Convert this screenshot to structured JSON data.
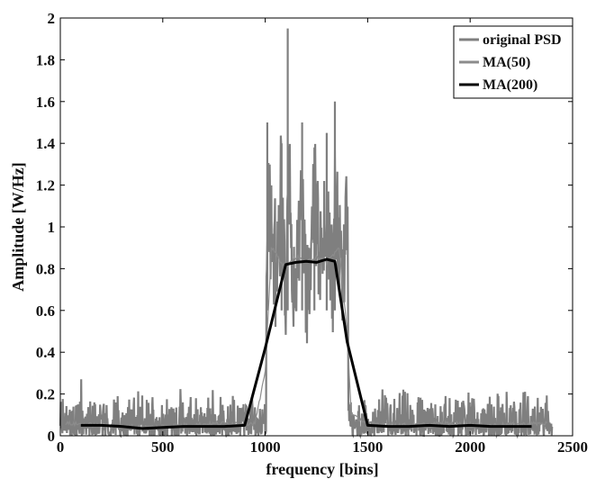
{
  "chart_data": {
    "type": "line",
    "title": "",
    "xlabel": "frequency [bins]",
    "ylabel": "Amplitude [W/Hz]",
    "xlim": [
      0,
      2500
    ],
    "ylim": [
      0,
      2
    ],
    "xticks": [
      0,
      500,
      1000,
      1500,
      2000,
      2500
    ],
    "yticks": [
      0,
      0.2,
      0.4,
      0.6,
      0.8,
      1,
      1.2,
      1.4,
      1.6,
      1.8,
      2
    ],
    "xtick_labels": [
      "0",
      "500",
      "1000",
      "1500",
      "2000",
      "2500"
    ],
    "ytick_labels": [
      "0",
      "0.2",
      "0.4",
      "0.6",
      "0.8",
      "1",
      "1.2",
      "1.4",
      "1.6",
      "1.8",
      "2"
    ],
    "grid": false,
    "legend_position": "top-right",
    "series": [
      {
        "name": "original PSD",
        "color": "#7f7f7f",
        "x_range": [
          0,
          2400
        ],
        "points_approx": [
          [
            0,
            0.05
          ],
          [
            50,
            0.15
          ],
          [
            100,
            0.31
          ],
          [
            150,
            0.04
          ],
          [
            200,
            0.12
          ],
          [
            250,
            0.08
          ],
          [
            300,
            0.03
          ],
          [
            350,
            0.16
          ],
          [
            400,
            0.05
          ],
          [
            450,
            0.14
          ],
          [
            500,
            0.06
          ],
          [
            550,
            0.18
          ],
          [
            600,
            0.04
          ],
          [
            650,
            0.2
          ],
          [
            700,
            0.07
          ],
          [
            750,
            0.15
          ],
          [
            800,
            0.05
          ],
          [
            850,
            0.21
          ],
          [
            900,
            0.06
          ],
          [
            950,
            0.17
          ],
          [
            1000,
            0.1
          ],
          [
            1010,
            1.5
          ],
          [
            1050,
            0.65
          ],
          [
            1080,
            1.4
          ],
          [
            1100,
            0.35
          ],
          [
            1110,
            1.95
          ],
          [
            1140,
            0.55
          ],
          [
            1180,
            1.5
          ],
          [
            1200,
            0.45
          ],
          [
            1240,
            1.38
          ],
          [
            1280,
            0.62
          ],
          [
            1300,
            1.45
          ],
          [
            1330,
            0.5
          ],
          [
            1340,
            1.6
          ],
          [
            1370,
            0.65
          ],
          [
            1400,
            1.2
          ],
          [
            1410,
            0.1
          ],
          [
            1450,
            0.15
          ],
          [
            1500,
            0.05
          ],
          [
            1550,
            0.19
          ],
          [
            1600,
            0.06
          ],
          [
            1650,
            0.13
          ],
          [
            1700,
            0.04
          ],
          [
            1750,
            0.18
          ],
          [
            1800,
            0.07
          ],
          [
            1850,
            0.16
          ],
          [
            1900,
            0.05
          ],
          [
            1950,
            0.2
          ],
          [
            2000,
            0.06
          ],
          [
            2050,
            0.14
          ],
          [
            2100,
            0.08
          ],
          [
            2150,
            0.17
          ],
          [
            2200,
            0.05
          ],
          [
            2250,
            0.12
          ],
          [
            2300,
            0.04
          ],
          [
            2360,
            0.2
          ],
          [
            2400,
            0.05
          ]
        ]
      },
      {
        "name": "MA(50)",
        "color": "#8c8c8c",
        "x_range": [
          25,
          2375
        ],
        "points_approx": [
          [
            25,
            0.06
          ],
          [
            200,
            0.05
          ],
          [
            400,
            0.04
          ],
          [
            600,
            0.05
          ],
          [
            800,
            0.06
          ],
          [
            950,
            0.06
          ],
          [
            1000,
            0.3
          ],
          [
            1030,
            0.9
          ],
          [
            1060,
            0.86
          ],
          [
            1100,
            0.8
          ],
          [
            1150,
            0.86
          ],
          [
            1200,
            0.83
          ],
          [
            1250,
            0.86
          ],
          [
            1300,
            0.83
          ],
          [
            1360,
            0.9
          ],
          [
            1400,
            0.5
          ],
          [
            1420,
            0.1
          ],
          [
            1500,
            0.06
          ],
          [
            1700,
            0.05
          ],
          [
            1900,
            0.06
          ],
          [
            2100,
            0.05
          ],
          [
            2375,
            0.06
          ]
        ]
      },
      {
        "name": "MA(200)",
        "color": "#000000",
        "x_range": [
          100,
          2300
        ],
        "points": [
          [
            100,
            0.05
          ],
          [
            200,
            0.05
          ],
          [
            300,
            0.045
          ],
          [
            400,
            0.035
          ],
          [
            500,
            0.04
          ],
          [
            600,
            0.045
          ],
          [
            700,
            0.045
          ],
          [
            800,
            0.045
          ],
          [
            900,
            0.05
          ],
          [
            1000,
            0.42
          ],
          [
            1100,
            0.82
          ],
          [
            1150,
            0.83
          ],
          [
            1200,
            0.835
          ],
          [
            1250,
            0.83
          ],
          [
            1300,
            0.845
          ],
          [
            1340,
            0.835
          ],
          [
            1400,
            0.45
          ],
          [
            1500,
            0.05
          ],
          [
            1600,
            0.045
          ],
          [
            1700,
            0.045
          ],
          [
            1800,
            0.05
          ],
          [
            1900,
            0.045
          ],
          [
            2000,
            0.05
          ],
          [
            2100,
            0.045
          ],
          [
            2200,
            0.045
          ],
          [
            2300,
            0.045
          ]
        ]
      }
    ]
  }
}
